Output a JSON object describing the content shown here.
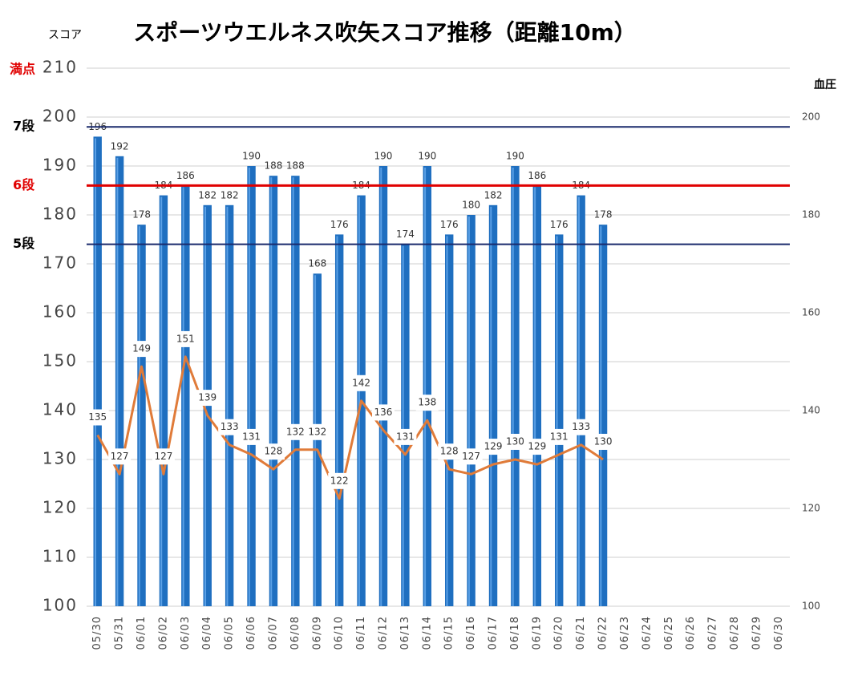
{
  "chart_data": {
    "type": "bar_line",
    "title": "スポーツウエルネス吹矢スコア推移（距離10m）",
    "y_axis_label": "スコア",
    "y2_axis_label": "血圧",
    "categories": [
      "05/30",
      "05/31",
      "06/01",
      "06/02",
      "06/03",
      "06/04",
      "06/05",
      "06/06",
      "06/07",
      "06/08",
      "06/09",
      "06/10",
      "06/11",
      "06/12",
      "06/13",
      "06/14",
      "06/15",
      "06/16",
      "06/17",
      "06/18",
      "06/19",
      "06/20",
      "06/21",
      "06/22",
      "06/23",
      "06/24",
      "06/25",
      "06/26",
      "06/27",
      "06/28",
      "06/29",
      "06/30"
    ],
    "series": [
      {
        "name": "スコア",
        "type": "bar",
        "color": "#1f6fc0",
        "values": [
          196,
          192,
          178,
          184,
          186,
          182,
          182,
          190,
          188,
          188,
          168,
          176,
          184,
          190,
          174,
          190,
          176,
          180,
          182,
          190,
          186,
          176,
          184,
          178,
          null,
          null,
          null,
          null,
          null,
          null,
          null,
          null
        ]
      },
      {
        "name": "血圧",
        "type": "line",
        "axis": "y2",
        "color": "#e07b39",
        "values": [
          135,
          127,
          149,
          127,
          151,
          139,
          133,
          131,
          128,
          132,
          132,
          122,
          142,
          136,
          131,
          138,
          128,
          127,
          129,
          130,
          129,
          131,
          133,
          130,
          null,
          null,
          null,
          null,
          null,
          null,
          null,
          null
        ]
      }
    ],
    "ylim": [
      100,
      210
    ],
    "yticks": [
      100,
      110,
      120,
      130,
      140,
      150,
      160,
      170,
      180,
      190,
      200,
      210
    ],
    "y2lim": [
      100,
      210
    ],
    "y2ticks": [
      100,
      120,
      140,
      160,
      180,
      200
    ],
    "grid": true,
    "max_label": {
      "text": "満点",
      "value": 210,
      "color": "#e00000"
    },
    "reference_lines": [
      {
        "label": "7段",
        "value": 198,
        "color": "#1a2a6c"
      },
      {
        "label": "6段",
        "value": 186,
        "color": "#e00000"
      },
      {
        "label": "5段",
        "value": 174,
        "color": "#1a2a6c"
      }
    ]
  }
}
